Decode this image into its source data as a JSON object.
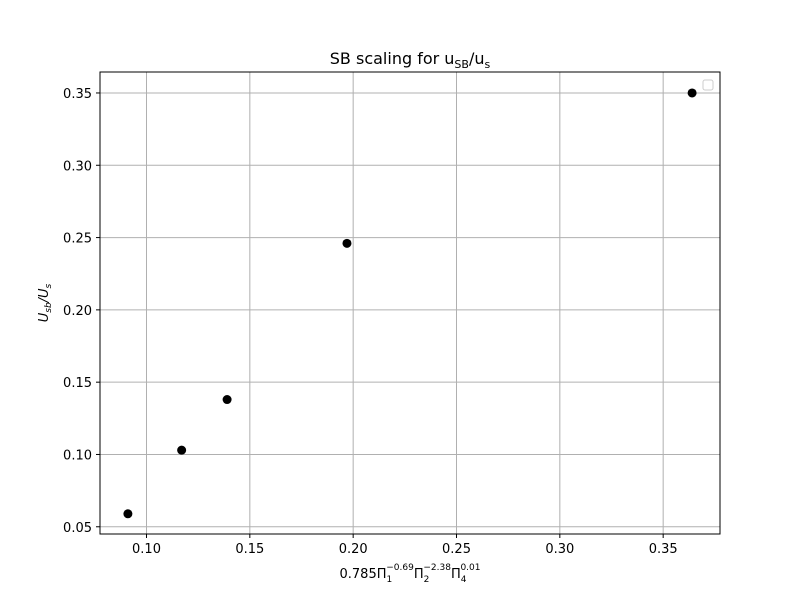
{
  "chart_data": {
    "type": "scatter",
    "title": "SB scaling for u_SB/u_s",
    "title_parts": {
      "base": "SB scaling for u",
      "sub1": "SB",
      "mid": "/u",
      "sub2": "s"
    },
    "xlabel": "0.785Π_1^-0.69 Π_2^-2.38 Π_4^0.01",
    "xlabel_parts": {
      "coef": "0.785",
      "terms": [
        {
          "sym": "Π",
          "sub": "1",
          "sup": "−0.69"
        },
        {
          "sym": "Π",
          "sub": "2",
          "sup": "−2.38"
        },
        {
          "sym": "Π",
          "sub": "4",
          "sup": "0.01"
        }
      ]
    },
    "ylabel": "U_sb/U_s",
    "ylabel_parts": {
      "u1": "U",
      "s1": "sb",
      "mid": "/U",
      "s2": "s"
    },
    "xlim": [
      0.0775,
      0.3775
    ],
    "ylim": [
      0.045,
      0.3645
    ],
    "xticks": [
      0.1,
      0.15,
      0.2,
      0.25,
      0.3,
      0.35
    ],
    "xtick_labels": [
      "0.10",
      "0.15",
      "0.20",
      "0.25",
      "0.30",
      "0.35"
    ],
    "yticks": [
      0.05,
      0.1,
      0.15,
      0.2,
      0.25,
      0.3,
      0.35
    ],
    "ytick_labels": [
      "0.05",
      "0.10",
      "0.15",
      "0.20",
      "0.25",
      "0.30",
      "0.35"
    ],
    "grid": true,
    "legend": "top-right (empty)",
    "marker_color": "#000000",
    "series": [
      {
        "x": [
          0.091,
          0.117,
          0.139,
          0.197,
          0.364
        ],
        "y": [
          0.059,
          0.103,
          0.138,
          0.246,
          0.35
        ]
      }
    ]
  }
}
